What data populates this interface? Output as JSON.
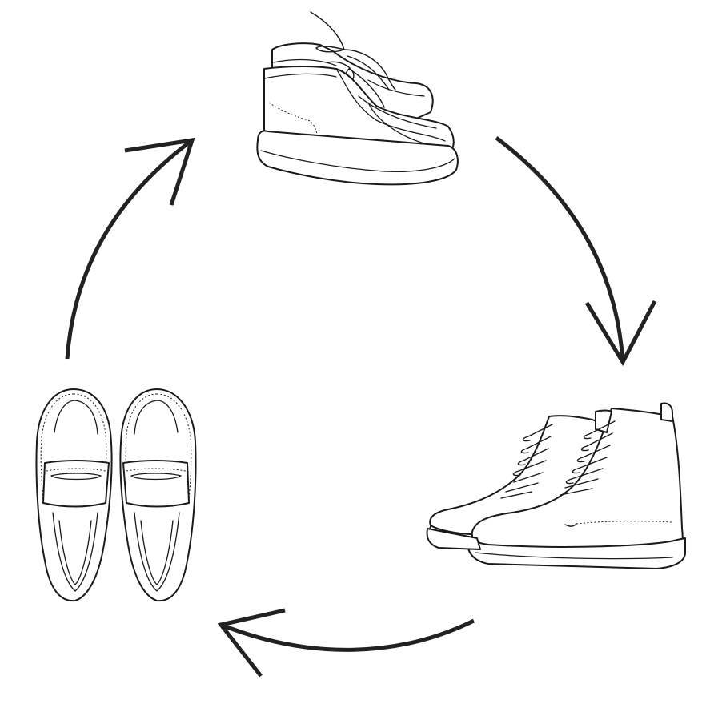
{
  "diagram": {
    "type": "cycle",
    "nodes": [
      {
        "id": "desert-boots",
        "icon": "desert-boot-icon"
      },
      {
        "id": "combat-boots",
        "icon": "combat-boot-icon"
      },
      {
        "id": "penny-loafers",
        "icon": "loafer-icon"
      }
    ],
    "flow": [
      {
        "from": "desert-boots",
        "to": "combat-boots"
      },
      {
        "from": "combat-boots",
        "to": "penny-loafers"
      },
      {
        "from": "penny-loafers",
        "to": "desert-boots"
      }
    ],
    "colors": {
      "line": "#1a1a1a",
      "arrow": "#222222",
      "background": "#ffffff"
    }
  }
}
